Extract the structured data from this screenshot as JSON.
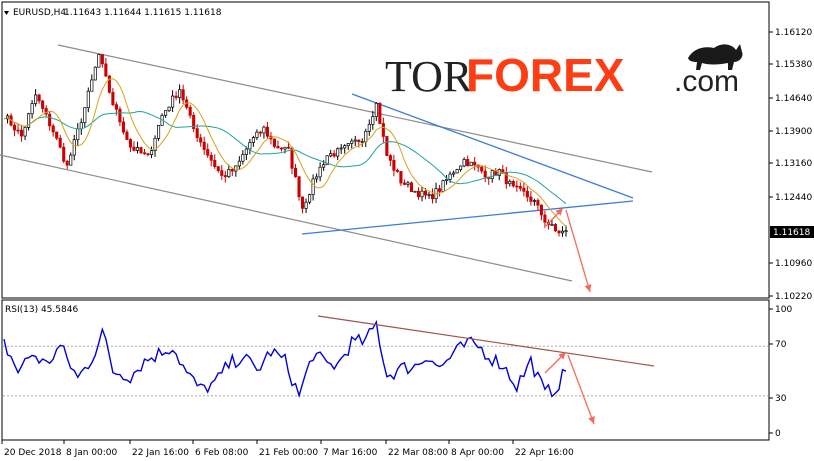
{
  "header": {
    "symbol": "EURUSD,H4",
    "ohlc": "1.11643 1.11644 1.11615 1.11618"
  },
  "logo": {
    "part1": "TOR",
    "part2": "FOREX",
    "part3": ".com"
  },
  "colors": {
    "bull": "#000000",
    "bear": "#cc0000",
    "ma_fast": "#d9a21b",
    "ma_slow": "#1fa39b",
    "channel": "#8c8c8c",
    "triangle": "#3b7bd8",
    "arrow": "#f26b5b",
    "rsi": "#0000dd",
    "rsi_trend": "#a0524d",
    "price_badge_bg": "#000000"
  },
  "chart_data": [
    {
      "type": "line",
      "name": "price",
      "title": "EURUSD,H4",
      "y_ticks": [
        "1.16120",
        "1.15380",
        "1.14640",
        "1.13900",
        "1.13160",
        "1.12440",
        "1.10960",
        "1.10220"
      ],
      "current_price": "1.11618",
      "ylim": [
        1.1022,
        1.1612
      ],
      "x_ticks": [
        "20 Dec 2018",
        "8 Jan 00:00",
        "22 Jan 16:00",
        "6 Feb 08:00",
        "21 Feb 00:00",
        "7 Mar 16:00",
        "22 Mar 08:00",
        "8 Apr 00:00",
        "22 Apr 16:00"
      ],
      "anchors": [
        [
          0,
          1.1426
        ],
        [
          5,
          1.1378
        ],
        [
          9,
          1.147
        ],
        [
          14,
          1.139
        ],
        [
          18,
          1.131
        ],
        [
          23,
          1.1442
        ],
        [
          27,
          1.156
        ],
        [
          31,
          1.1452
        ],
        [
          36,
          1.1355
        ],
        [
          41,
          1.133
        ],
        [
          45,
          1.1425
        ],
        [
          50,
          1.1485
        ],
        [
          54,
          1.1395
        ],
        [
          58,
          1.1338
        ],
        [
          62,
          1.1288
        ],
        [
          66,
          1.1305
        ],
        [
          70,
          1.1364
        ],
        [
          74,
          1.1395
        ],
        [
          77,
          1.1358
        ],
        [
          81,
          1.1345
        ],
        [
          85,
          1.1218
        ],
        [
          89,
          1.1292
        ],
        [
          92,
          1.1335
        ],
        [
          96,
          1.1345
        ],
        [
          99,
          1.136
        ],
        [
          102,
          1.1375
        ],
        [
          106,
          1.145
        ],
        [
          109,
          1.1335
        ],
        [
          113,
          1.1278
        ],
        [
          117,
          1.1255
        ],
        [
          121,
          1.124
        ],
        [
          124,
          1.126
        ],
        [
          128,
          1.13
        ],
        [
          131,
          1.1325
        ],
        [
          134,
          1.131
        ],
        [
          138,
          1.129
        ],
        [
          141,
          1.13
        ],
        [
          145,
          1.126
        ],
        [
          148,
          1.125
        ],
        [
          151,
          1.123
        ],
        [
          154,
          1.119
        ],
        [
          157,
          1.1165
        ],
        [
          160,
          1.1162
        ]
      ],
      "series": [
        {
          "name": "price"
        },
        {
          "name": "MA fast"
        },
        {
          "name": "MA slow"
        }
      ]
    },
    {
      "type": "line",
      "name": "rsi",
      "title": "RSI(13) 45.5846",
      "y_ticks": [
        "100",
        "70",
        "30",
        "0"
      ],
      "ylim": [
        0,
        100
      ],
      "anchors": [
        [
          0,
          72
        ],
        [
          4,
          50
        ],
        [
          8,
          64
        ],
        [
          12,
          55
        ],
        [
          16,
          70
        ],
        [
          21,
          44
        ],
        [
          25,
          60
        ],
        [
          28,
          82
        ],
        [
          31,
          50
        ],
        [
          36,
          46
        ],
        [
          40,
          58
        ],
        [
          44,
          64
        ],
        [
          48,
          70
        ],
        [
          52,
          48
        ],
        [
          56,
          35
        ],
        [
          60,
          40
        ],
        [
          64,
          55
        ],
        [
          68,
          62
        ],
        [
          72,
          50
        ],
        [
          76,
          66
        ],
        [
          80,
          58
        ],
        [
          84,
          30
        ],
        [
          88,
          64
        ],
        [
          92,
          55
        ],
        [
          95,
          55
        ],
        [
          99,
          73
        ],
        [
          103,
          74
        ],
        [
          106,
          88
        ],
        [
          109,
          46
        ],
        [
          113,
          52
        ],
        [
          117,
          54
        ],
        [
          121,
          63
        ],
        [
          124,
          52
        ],
        [
          128,
          64
        ],
        [
          132,
          72
        ],
        [
          135,
          70
        ],
        [
          139,
          60
        ],
        [
          142,
          55
        ],
        [
          146,
          38
        ],
        [
          150,
          58
        ],
        [
          154,
          32
        ],
        [
          157,
          36
        ],
        [
          160,
          50
        ]
      ]
    }
  ]
}
